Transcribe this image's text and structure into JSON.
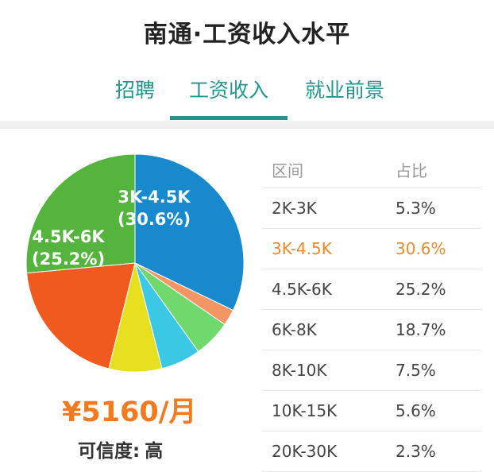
{
  "header": {
    "title": "南通·工资收入水平"
  },
  "tabs": [
    {
      "label": "招聘",
      "active": false
    },
    {
      "label": "工资收入",
      "active": true
    },
    {
      "label": "就业前景",
      "active": false
    }
  ],
  "colors": {
    "accent": "#23958c",
    "highlight": "#f08a2c",
    "salary": "#f47a1f"
  },
  "chart_data": {
    "type": "pie",
    "categories": [
      "2K-3K",
      "3K-4.5K",
      "4.5K-6K",
      "6K-8K",
      "8K-10K",
      "10K-15K",
      "20K-30K"
    ],
    "values": [
      5.3,
      30.6,
      25.2,
      18.7,
      7.5,
      5.6,
      2.3
    ],
    "colors": [
      "#70d96d",
      "#1889cc",
      "#55b43d",
      "#f05a1f",
      "#e7e020",
      "#3ac8e4",
      "#f39565"
    ],
    "labels": [
      {
        "category": "3K-4.5K",
        "line1": "3K-4.5K",
        "line2": "(30.6%)"
      },
      {
        "category": "4.5K-6K",
        "line1": "4.5K-6K",
        "line2": "(25.2%)"
      }
    ]
  },
  "summary": {
    "average_salary": "¥5160/月",
    "credibility_label": "可信度:",
    "credibility_value": "高"
  },
  "table": {
    "headers": {
      "range": "区间",
      "share": "占比"
    },
    "rows": [
      {
        "range": "2K-3K",
        "share": "5.3%",
        "highlight": false
      },
      {
        "range": "3K-4.5K",
        "share": "30.6%",
        "highlight": true
      },
      {
        "range": "4.5K-6K",
        "share": "25.2%",
        "highlight": false
      },
      {
        "range": "6K-8K",
        "share": "18.7%",
        "highlight": false
      },
      {
        "range": "8K-10K",
        "share": "7.5%",
        "highlight": false
      },
      {
        "range": "10K-15K",
        "share": "5.6%",
        "highlight": false
      },
      {
        "range": "20K-30K",
        "share": "2.3%",
        "highlight": false
      }
    ]
  }
}
